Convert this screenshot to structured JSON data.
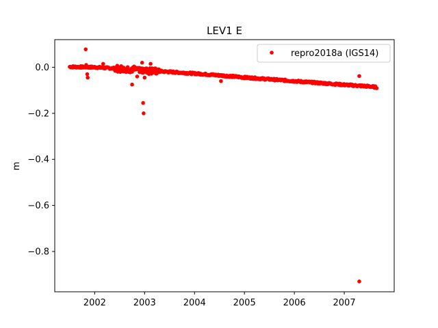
{
  "chart_data": {
    "type": "scatter",
    "title": "LEV1 E",
    "xlabel": "",
    "ylabel": "m",
    "xlim": [
      2001.2,
      2008.0
    ],
    "ylim": [
      -0.975,
      0.12
    ],
    "xticks": [
      2002,
      2003,
      2004,
      2005,
      2006,
      2007
    ],
    "xtick_labels": [
      "2002",
      "2003",
      "2004",
      "2005",
      "2006",
      "2007"
    ],
    "yticks": [
      0.0,
      -0.2,
      -0.4,
      -0.6,
      -0.8
    ],
    "ytick_labels": [
      "0.0",
      "−0.2",
      "−0.4",
      "−0.6",
      "−0.8"
    ],
    "grid": false,
    "legend_position": "top-right",
    "series": [
      {
        "name": "repro2018a (IGS14)",
        "color": "#ff0000",
        "marker": "circle",
        "trend": {
          "x": [
            2001.5,
            2002.0,
            2002.5,
            2003.0,
            2003.5,
            2004.0,
            2004.5,
            2005.0,
            2005.5,
            2006.0,
            2006.5,
            2007.0,
            2007.5,
            2007.65
          ],
          "y": [
            0.002,
            0.0,
            -0.006,
            -0.013,
            -0.02,
            -0.027,
            -0.035,
            -0.044,
            -0.052,
            -0.06,
            -0.068,
            -0.076,
            -0.083,
            -0.087
          ]
        },
        "outliers": {
          "x": [
            2001.82,
            2001.83,
            2001.85,
            2001.86,
            2002.17,
            2002.75,
            2002.85,
            2002.95,
            2002.97,
            2002.98,
            2003.0,
            2003.12,
            2004.53,
            2007.3,
            2007.3
          ],
          "y": [
            0.078,
            0.01,
            -0.03,
            -0.045,
            0.015,
            -0.075,
            -0.04,
            0.02,
            -0.155,
            -0.2,
            -0.045,
            0.015,
            -0.06,
            -0.038,
            -0.93
          ]
        }
      }
    ]
  }
}
